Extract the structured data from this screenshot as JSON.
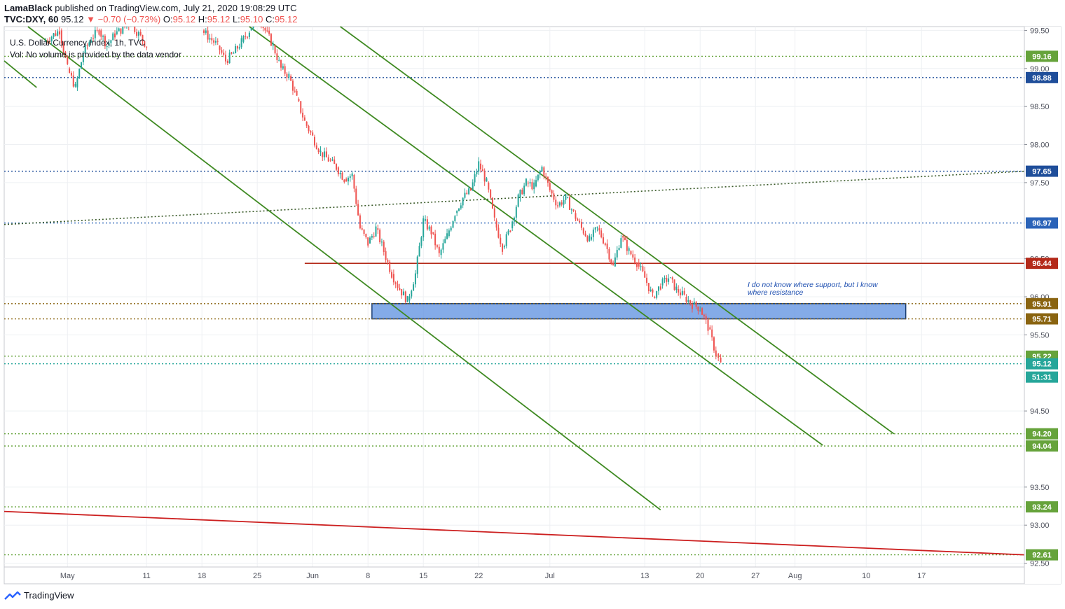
{
  "header": {
    "author": "LamaBlack",
    "published": "published on TradingView.com, July 21, 2020 19:08:29 UTC",
    "symbol": "TVC:DXY, 60",
    "last": "95.12",
    "change": "−0.70 (−0.73%)",
    "o_label": "O:",
    "o": "95.12",
    "h_label": "H:",
    "h": "95.12",
    "l_label": "L:",
    "l": "95.10",
    "c_label": "C:",
    "c": "95.12"
  },
  "legend": {
    "name": "U.S. Dollar Currency Index, 1h, TVC",
    "vol": "Vol: No volume is provided by the data vendor"
  },
  "footer": {
    "brand": "TradingView"
  },
  "chart_data": {
    "type": "line",
    "title": "U.S. Dollar Currency Index, 1h, TVC",
    "ylim": [
      92.45,
      99.55
    ],
    "y_ticks": [
      "92.50",
      "93.00",
      "93.50",
      "94.50",
      "95.50",
      "96.00",
      "96.50",
      "97.50",
      "98.00",
      "98.50",
      "99.00",
      "99.50"
    ],
    "x_ticks": [
      {
        "label": "May",
        "day": 0
      },
      {
        "label": "11",
        "day": 10
      },
      {
        "label": "18",
        "day": 17
      },
      {
        "label": "25",
        "day": 24
      },
      {
        "label": "Jun",
        "day": 31
      },
      {
        "label": "8",
        "day": 38
      },
      {
        "label": "15",
        "day": 45
      },
      {
        "label": "22",
        "day": 52
      },
      {
        "label": "Jul",
        "day": 61
      },
      {
        "label": "13",
        "day": 73
      },
      {
        "label": "20",
        "day": 80
      },
      {
        "label": "27",
        "day": 87
      },
      {
        "label": "Aug",
        "day": 92
      },
      {
        "label": "10",
        "day": 101
      },
      {
        "label": "17",
        "day": 108
      }
    ],
    "x_range_days": [
      -8,
      121
    ],
    "series": [
      {
        "points": [
          [
            -3,
            99.35
          ],
          [
            -1,
            99.5
          ],
          [
            0,
            99.0
          ],
          [
            1,
            98.75
          ],
          [
            2,
            99.2
          ],
          [
            3,
            99.4
          ],
          [
            4,
            99.5
          ],
          [
            5,
            99.3
          ],
          [
            6,
            99.45
          ],
          [
            8,
            99.6
          ],
          [
            10,
            99.3
          ],
          [
            17,
            99.5
          ],
          [
            18,
            99.4
          ],
          [
            19,
            99.3
          ],
          [
            20,
            99.1
          ],
          [
            21,
            99.2
          ],
          [
            22,
            99.35
          ],
          [
            23,
            99.5
          ],
          [
            24,
            99.7
          ],
          [
            26,
            99.3
          ],
          [
            27,
            99.0
          ],
          [
            28,
            98.9
          ],
          [
            29,
            98.6
          ],
          [
            30,
            98.3
          ],
          [
            31,
            98.1
          ],
          [
            32,
            97.9
          ],
          [
            33,
            97.8
          ],
          [
            34,
            97.7
          ],
          [
            35,
            97.55
          ],
          [
            36,
            97.6
          ],
          [
            37,
            96.9
          ],
          [
            38,
            96.7
          ],
          [
            39,
            96.9
          ],
          [
            40,
            96.6
          ],
          [
            41,
            96.3
          ],
          [
            42,
            96.1
          ],
          [
            43,
            95.95
          ],
          [
            44,
            96.3
          ],
          [
            45,
            97.0
          ],
          [
            46,
            96.85
          ],
          [
            47,
            96.55
          ],
          [
            48,
            96.8
          ],
          [
            49,
            97.1
          ],
          [
            50,
            97.3
          ],
          [
            51,
            97.4
          ],
          [
            52,
            97.75
          ],
          [
            53,
            97.5
          ],
          [
            54,
            97.0
          ],
          [
            55,
            96.65
          ],
          [
            56,
            96.9
          ],
          [
            57,
            97.3
          ],
          [
            58,
            97.5
          ],
          [
            59,
            97.45
          ],
          [
            60,
            97.7
          ],
          [
            61,
            97.4
          ],
          [
            62,
            97.2
          ],
          [
            63,
            97.3
          ],
          [
            64,
            97.1
          ],
          [
            65,
            96.9
          ],
          [
            66,
            96.75
          ],
          [
            67,
            96.9
          ],
          [
            68,
            96.7
          ],
          [
            69,
            96.4
          ],
          [
            70,
            96.8
          ],
          [
            71,
            96.6
          ],
          [
            72,
            96.45
          ],
          [
            73,
            96.25
          ],
          [
            74,
            96.0
          ],
          [
            75,
            96.15
          ],
          [
            76,
            96.25
          ],
          [
            77,
            96.1
          ],
          [
            78,
            96.0
          ],
          [
            79,
            95.9
          ],
          [
            80,
            95.85
          ],
          [
            81,
            95.6
          ],
          [
            82,
            95.25
          ],
          [
            82.6,
            95.12
          ]
        ]
      }
    ],
    "horizontal_levels": [
      {
        "value": 99.16,
        "label": "99.16",
        "color": "#66a33b",
        "style": "dotted"
      },
      {
        "value": 98.88,
        "label": "98.88",
        "color": "#1f4e9a",
        "style": "dotted"
      },
      {
        "value": 97.65,
        "label": "97.65",
        "color": "#1f4e9a",
        "style": "dotted"
      },
      {
        "value": 96.97,
        "label": "96.97",
        "color": "#2b63b8",
        "style": "dotted"
      },
      {
        "value": 96.44,
        "label": "96.44",
        "color": "#b42a1a",
        "style": "solid"
      },
      {
        "value": 95.91,
        "label": "95.91",
        "color": "#8a6410",
        "style": "dotted"
      },
      {
        "value": 95.71,
        "label": "95.71",
        "color": "#8a6410",
        "style": "dotted"
      },
      {
        "value": 95.22,
        "label": "95.22",
        "color": "#66a33b",
        "style": "dotted"
      },
      {
        "value": 95.12,
        "label": "95.12",
        "color": "#26a69a",
        "style": "dotted"
      },
      {
        "value": 94.2,
        "label": "94.20",
        "color": "#66a33b",
        "style": "dotted"
      },
      {
        "value": 94.04,
        "label": "94.04",
        "color": "#66a33b",
        "style": "dotted"
      },
      {
        "value": 93.24,
        "label": "93.24",
        "color": "#66a33b",
        "style": "dotted"
      },
      {
        "value": 92.61,
        "label": "92.61",
        "color": "#66a33b",
        "style": "dotted"
      }
    ],
    "countdown": "51:31",
    "resistance_zone": {
      "from_day": 38.5,
      "to_day": 106,
      "low": 95.71,
      "high": 95.91
    },
    "trendlines": [
      {
        "d1": -5,
        "v1": 99.55,
        "d2": 75,
        "v2": 93.2,
        "color": "#3f8a22",
        "style": "solid"
      },
      {
        "d1": 23,
        "v1": 99.55,
        "d2": 95.5,
        "v2": 94.05,
        "color": "#3f8a22",
        "style": "solid"
      },
      {
        "d1": 34.5,
        "v1": 99.55,
        "d2": 104.5,
        "v2": 94.2,
        "color": "#3f8a22",
        "style": "solid"
      },
      {
        "d1": -8,
        "v1": 99.1,
        "d2": -3.9,
        "v2": 98.75,
        "color": "#3f8a22",
        "style": "solid"
      },
      {
        "d1": -8,
        "v1": 96.95,
        "d2": 121,
        "v2": 97.65,
        "color": "#3b5b2a",
        "style": "dotted"
      },
      {
        "d1": -8,
        "v1": 93.18,
        "d2": 121,
        "v2": 92.61,
        "color": "#cc1f1f",
        "style": "solid"
      }
    ],
    "annotation": {
      "lines": [
        "I do not know where support, but I know",
        "where resistance"
      ],
      "day": 86,
      "value": 96.13
    },
    "grid": true
  }
}
